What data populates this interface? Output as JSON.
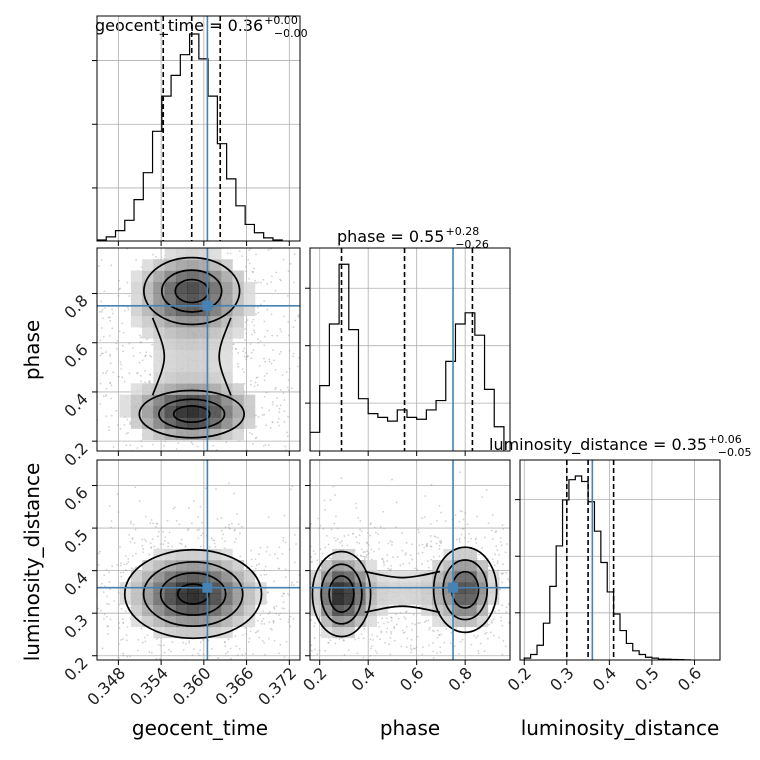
{
  "chart_data": {
    "type": "corner",
    "parameters": [
      "geocent_time",
      "phase",
      "luminosity_distance"
    ],
    "truths": {
      "geocent_time": 0.3605,
      "phase": 0.75,
      "luminosity_distance": 0.36
    },
    "titles": [
      {
        "param": "geocent_time",
        "text": "geocent_time = 0.36",
        "upper": "+0.00",
        "lower": "−0.00"
      },
      {
        "param": "phase",
        "text": "phase = 0.55",
        "upper": "+0.28",
        "lower": "−0.26"
      },
      {
        "param": "luminosity_distance",
        "text": "luminosity_distance = 0.35",
        "upper": "+0.06",
        "lower": "−0.05"
      }
    ],
    "axis_labels": {
      "x": [
        "geocent_time",
        "phase",
        "luminosity_distance"
      ],
      "y_row2": "phase",
      "y_row3": "luminosity_distance"
    },
    "axes": {
      "geocent_time": {
        "range": [
          0.345,
          0.3735
        ],
        "ticks": [
          0.348,
          0.354,
          0.36,
          0.366,
          0.372
        ],
        "tick_labels": [
          "0.348",
          "0.354",
          "0.360",
          "0.366",
          "0.372"
        ]
      },
      "phase": {
        "range": [
          0.16,
          0.985
        ],
        "ticks": [
          0.2,
          0.4,
          0.6,
          0.8
        ],
        "tick_labels": [
          "0.2",
          "0.4",
          "0.6",
          "0.8"
        ]
      },
      "luminosity_distance": {
        "range": [
          0.19,
          0.66
        ],
        "ticks": [
          0.2,
          0.3,
          0.4,
          0.5,
          0.6
        ],
        "tick_labels": [
          "0.2",
          "0.3",
          "0.4",
          "0.5",
          "0.6"
        ]
      }
    },
    "marginals": [
      {
        "param": "geocent_time",
        "bin_edges": [
          0.345,
          0.3463,
          0.3476,
          0.3489,
          0.3502,
          0.3515,
          0.3528,
          0.3541,
          0.3554,
          0.3567,
          0.358,
          0.3593,
          0.3606,
          0.3619,
          0.3632,
          0.3645,
          0.3658,
          0.3671,
          0.3684,
          0.3697,
          0.371
        ],
        "counts": [
          0.005,
          0.02,
          0.05,
          0.1,
          0.2,
          0.33,
          0.53,
          0.7,
          0.8,
          0.9,
          1.0,
          0.88,
          0.7,
          0.47,
          0.3,
          0.17,
          0.08,
          0.04,
          0.015,
          0.005
        ],
        "quantiles": [
          0.3543,
          0.3583,
          0.3623
        ]
      },
      {
        "param": "phase",
        "bin_edges": [
          0.16,
          0.2,
          0.24,
          0.28,
          0.32,
          0.36,
          0.4,
          0.44,
          0.48,
          0.52,
          0.56,
          0.6,
          0.64,
          0.68,
          0.72,
          0.76,
          0.8,
          0.84,
          0.88,
          0.92,
          0.96
        ],
        "counts": [
          0.1,
          0.35,
          0.68,
          1.0,
          0.65,
          0.28,
          0.2,
          0.18,
          0.16,
          0.22,
          0.18,
          0.17,
          0.22,
          0.27,
          0.48,
          0.68,
          0.74,
          0.62,
          0.33,
          0.13
        ],
        "quantiles": [
          0.29,
          0.55,
          0.83
        ]
      },
      {
        "param": "luminosity_distance",
        "bin_edges": [
          0.2,
          0.215,
          0.23,
          0.245,
          0.26,
          0.275,
          0.29,
          0.305,
          0.32,
          0.335,
          0.35,
          0.365,
          0.38,
          0.395,
          0.41,
          0.425,
          0.44,
          0.455,
          0.47,
          0.485,
          0.5,
          0.515,
          0.53,
          0.545,
          0.56,
          0.575,
          0.59
        ],
        "counts": [
          0.01,
          0.03,
          0.08,
          0.2,
          0.4,
          0.62,
          0.87,
          0.98,
          1.0,
          0.97,
          0.86,
          0.7,
          0.53,
          0.37,
          0.25,
          0.16,
          0.09,
          0.05,
          0.03,
          0.015,
          0.01,
          0.005,
          0.004,
          0.003,
          0.002,
          0.001
        ],
        "quantiles": [
          0.3,
          0.35,
          0.41
        ]
      }
    ],
    "joint_2d": [
      {
        "x_param": "geocent_time",
        "y_param": "phase",
        "modes": [
          {
            "cx": 0.3583,
            "cy": 0.81,
            "sx": 0.0042,
            "sy": 0.085,
            "w": 0.85
          },
          {
            "cx": 0.3583,
            "cy": 0.31,
            "sx": 0.0046,
            "sy": 0.06,
            "w": 1.0
          }
        ],
        "bridge": {
          "y_from": 0.36,
          "y_to": 0.75,
          "half_width": 0.0055
        },
        "contours": [
          {
            "level": 1,
            "modes_scale": 1.6
          },
          {
            "level": 2,
            "modes_scale": 1.0
          },
          {
            "level": 3,
            "modes_scale": 0.55
          }
        ]
      },
      {
        "x_param": "geocent_time",
        "y_param": "luminosity_distance",
        "modes": [
          {
            "cx": 0.3585,
            "cy": 0.345,
            "sx": 0.0048,
            "sy": 0.052,
            "w": 1.0
          }
        ],
        "contours": [
          {
            "level": 1,
            "modes_scale": 2.0
          },
          {
            "level": 2,
            "modes_scale": 1.45
          },
          {
            "level": 3,
            "modes_scale": 0.95
          },
          {
            "level": 4,
            "modes_scale": 0.45
          }
        ]
      },
      {
        "x_param": "phase",
        "y_param": "luminosity_distance",
        "modes": [
          {
            "cx": 0.29,
            "cy": 0.345,
            "sx": 0.06,
            "sy": 0.05,
            "w": 1.0
          },
          {
            "cx": 0.8,
            "cy": 0.355,
            "sx": 0.065,
            "sy": 0.05,
            "w": 0.8
          }
        ],
        "bridge": {
          "x_from": 0.36,
          "x_to": 0.72,
          "half_height": 0.048
        },
        "contours": [
          {
            "level": 1,
            "modes_scale": 2.0
          },
          {
            "level": 2,
            "modes_scale": 1.4
          },
          {
            "level": 3,
            "modes_scale": 0.85
          }
        ]
      }
    ],
    "colors": {
      "truth": "#4682b4",
      "hist": "#000000",
      "grid": "#b0b0b0",
      "frame": "#000000"
    },
    "grid": true
  }
}
